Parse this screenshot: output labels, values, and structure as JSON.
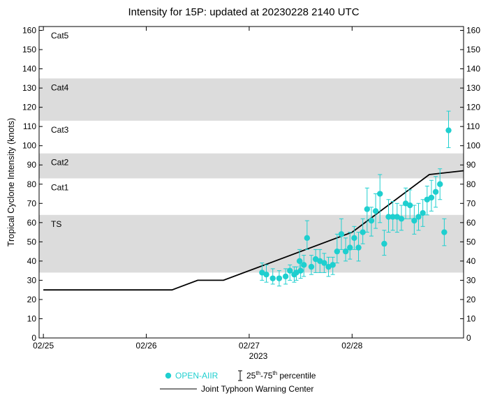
{
  "chart_data": {
    "type": "scatter",
    "title": "Intensity for 15P: updated at 20230228 2140 UTC",
    "ylabel": "Tropical Cyclone Intensity (knots)",
    "xlabel": "",
    "x_year_label": "2023",
    "ylim": [
      0,
      162
    ],
    "xlim": [
      "2023-02-24T23:00",
      "2023-03-01T02:00"
    ],
    "yticks": [
      0,
      10,
      20,
      30,
      40,
      50,
      60,
      70,
      80,
      90,
      100,
      110,
      120,
      130,
      140,
      150,
      160
    ],
    "ytick_labels": [
      "0",
      "10",
      "20",
      "30",
      "40",
      "50",
      "60",
      "70",
      "80",
      "90",
      "100",
      "110",
      "120",
      "130",
      "140",
      "150",
      "160"
    ],
    "xticks": [
      "2023-02-25T00:00",
      "2023-02-26T00:00",
      "2023-02-27T00:00",
      "2023-02-28T00:00"
    ],
    "xtick_labels": [
      "02/25",
      "02/26",
      "02/27",
      "02/28"
    ],
    "grid": false,
    "legend_position": "below",
    "category_bands": [
      {
        "label": "TS",
        "min": 34,
        "max": 64,
        "shaded": true
      },
      {
        "label": "Cat1",
        "min": 64,
        "max": 83,
        "shaded": false
      },
      {
        "label": "Cat2",
        "min": 83,
        "max": 96,
        "shaded": true
      },
      {
        "label": "Cat3",
        "min": 96,
        "max": 113,
        "shaded": false
      },
      {
        "label": "Cat4",
        "min": 113,
        "max": 135,
        "shaded": true
      },
      {
        "label": "Cat5",
        "min": 135,
        "max": 162,
        "shaded": false
      }
    ],
    "series": [
      {
        "name": "OPEN-AIIR",
        "kind": "scatter",
        "color": "#1fcfcf",
        "points": [
          {
            "x": "2023-02-27T03:00",
            "y": 34,
            "lo": 30,
            "hi": 39
          },
          {
            "x": "2023-02-27T04:00",
            "y": 33,
            "lo": 29,
            "hi": 38
          },
          {
            "x": "2023-02-27T05:30",
            "y": 31,
            "lo": 28,
            "hi": 36
          },
          {
            "x": "2023-02-27T07:00",
            "y": 31,
            "lo": 27,
            "hi": 35
          },
          {
            "x": "2023-02-27T08:30",
            "y": 32,
            "lo": 28,
            "hi": 36
          },
          {
            "x": "2023-02-27T09:30",
            "y": 35,
            "lo": 30,
            "hi": 38
          },
          {
            "x": "2023-02-27T11:00",
            "y": 34,
            "lo": 30,
            "hi": 37
          },
          {
            "x": "2023-02-27T12:00",
            "y": 35,
            "lo": 31,
            "hi": 40
          },
          {
            "x": "2023-02-27T10:30",
            "y": 33,
            "lo": 29,
            "hi": 37
          },
          {
            "x": "2023-02-27T12:45",
            "y": 38,
            "lo": 32,
            "hi": 43
          },
          {
            "x": "2023-02-27T11:45",
            "y": 40,
            "lo": 34,
            "hi": 46
          },
          {
            "x": "2023-02-27T13:30",
            "y": 52,
            "lo": 46,
            "hi": 61
          },
          {
            "x": "2023-02-27T14:30",
            "y": 37,
            "lo": 33,
            "hi": 43
          },
          {
            "x": "2023-02-27T15:30",
            "y": 41,
            "lo": 34,
            "hi": 46
          },
          {
            "x": "2023-02-27T16:30",
            "y": 40,
            "lo": 34,
            "hi": 46
          },
          {
            "x": "2023-02-27T17:30",
            "y": 39,
            "lo": 34,
            "hi": 44
          },
          {
            "x": "2023-02-27T18:30",
            "y": 37,
            "lo": 32,
            "hi": 42
          },
          {
            "x": "2023-02-27T19:30",
            "y": 38,
            "lo": 33,
            "hi": 42
          },
          {
            "x": "2023-02-27T20:30",
            "y": 45,
            "lo": 39,
            "hi": 54
          },
          {
            "x": "2023-02-27T21:30",
            "y": 54,
            "lo": 46,
            "hi": 62
          },
          {
            "x": "2023-02-27T22:30",
            "y": 45,
            "lo": 40,
            "hi": 52
          },
          {
            "x": "2023-02-27T23:30",
            "y": 47,
            "lo": 41,
            "hi": 55
          },
          {
            "x": "2023-02-28T00:30",
            "y": 52,
            "lo": 46,
            "hi": 58
          },
          {
            "x": "2023-02-28T01:30",
            "y": 47,
            "lo": 40,
            "hi": 55
          },
          {
            "x": "2023-02-28T02:30",
            "y": 55,
            "lo": 49,
            "hi": 62
          },
          {
            "x": "2023-02-28T03:30",
            "y": 67,
            "lo": 55,
            "hi": 78
          },
          {
            "x": "2023-02-28T04:30",
            "y": 61,
            "lo": 53,
            "hi": 68
          },
          {
            "x": "2023-02-28T05:30",
            "y": 66,
            "lo": 57,
            "hi": 75
          },
          {
            "x": "2023-02-28T06:30",
            "y": 75,
            "lo": 60,
            "hi": 85
          },
          {
            "x": "2023-02-28T07:30",
            "y": 49,
            "lo": 43,
            "hi": 56
          },
          {
            "x": "2023-02-28T08:30",
            "y": 63,
            "lo": 55,
            "hi": 72
          },
          {
            "x": "2023-02-28T09:30",
            "y": 63,
            "lo": 56,
            "hi": 71
          },
          {
            "x": "2023-02-28T10:30",
            "y": 63,
            "lo": 55,
            "hi": 70
          },
          {
            "x": "2023-02-28T11:30",
            "y": 62,
            "lo": 56,
            "hi": 69
          },
          {
            "x": "2023-02-28T12:30",
            "y": 70,
            "lo": 62,
            "hi": 78
          },
          {
            "x": "2023-02-28T13:30",
            "y": 69,
            "lo": 62,
            "hi": 77
          },
          {
            "x": "2023-02-28T14:30",
            "y": 61,
            "lo": 54,
            "hi": 69
          },
          {
            "x": "2023-02-28T15:30",
            "y": 63,
            "lo": 56,
            "hi": 70
          },
          {
            "x": "2023-02-28T16:30",
            "y": 65,
            "lo": 58,
            "hi": 72
          },
          {
            "x": "2023-02-28T17:30",
            "y": 72,
            "lo": 64,
            "hi": 79
          },
          {
            "x": "2023-02-28T18:30",
            "y": 73,
            "lo": 66,
            "hi": 82
          },
          {
            "x": "2023-02-28T19:30",
            "y": 76,
            "lo": 68,
            "hi": 84
          },
          {
            "x": "2023-02-28T20:30",
            "y": 80,
            "lo": 72,
            "hi": 88
          },
          {
            "x": "2023-02-28T21:30",
            "y": 55,
            "lo": 48,
            "hi": 62
          },
          {
            "x": "2023-02-28T22:30",
            "y": 108,
            "lo": 99,
            "hi": 118
          }
        ]
      },
      {
        "name": "Joint Typhoon Warning Center",
        "kind": "line",
        "color": "#000000",
        "points": [
          {
            "x": "2023-02-25T00:00",
            "y": 25
          },
          {
            "x": "2023-02-26T06:00",
            "y": 25
          },
          {
            "x": "2023-02-26T12:00",
            "y": 30
          },
          {
            "x": "2023-02-26T18:00",
            "y": 30
          },
          {
            "x": "2023-02-28T00:00",
            "y": 55
          },
          {
            "x": "2023-02-28T18:00",
            "y": 85
          },
          {
            "x": "2023-03-01T02:00",
            "y": 87
          }
        ]
      }
    ]
  },
  "legend": {
    "scatter_label": "OPEN-AIIR",
    "percentile_prefix": "25",
    "percentile_sup1": "th",
    "percentile_mid": "-75",
    "percentile_sup2": "th",
    "percentile_suffix": " percentile",
    "line_label": "Joint Typhoon Warning Center"
  }
}
